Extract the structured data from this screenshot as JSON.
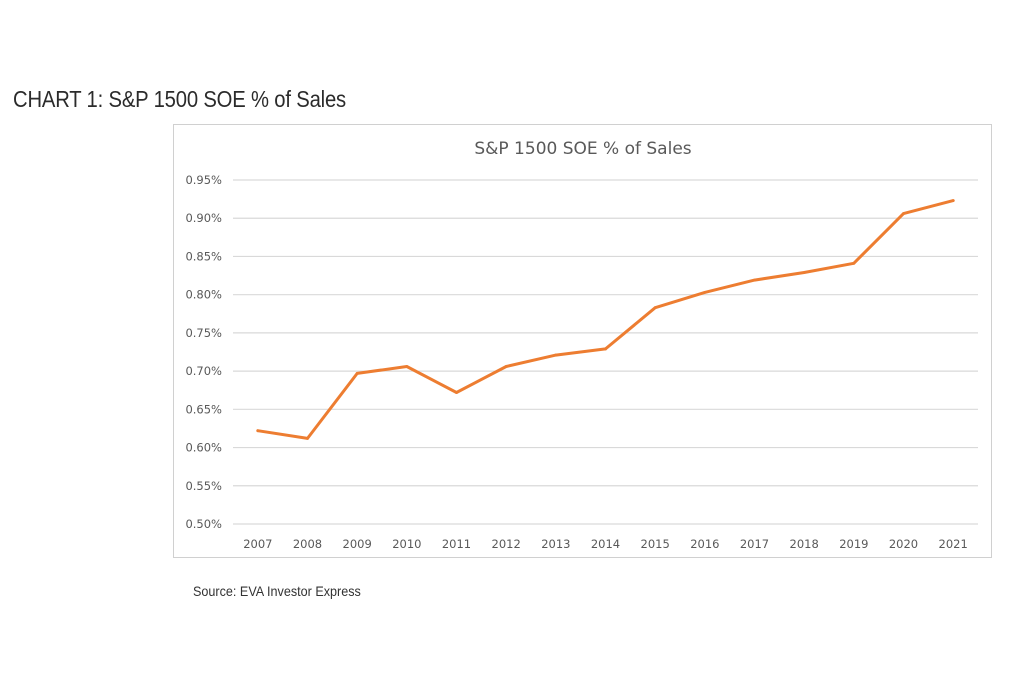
{
  "page": {
    "heading": "CHART 1: S&P 1500 SOE % of Sales",
    "source": "Source: EVA Investor Express"
  },
  "chart_data": {
    "type": "line",
    "title": "S&P 1500 SOE % of Sales",
    "xlabel": "",
    "ylabel": "",
    "categories": [
      "2007",
      "2008",
      "2009",
      "2010",
      "2011",
      "2012",
      "2013",
      "2014",
      "2015",
      "2016",
      "2017",
      "2018",
      "2019",
      "2020",
      "2021"
    ],
    "series": [
      {
        "color": "#ED7D31",
        "values": [
          0.622,
          0.612,
          0.697,
          0.706,
          0.672,
          0.706,
          0.721,
          0.729,
          0.783,
          0.803,
          0.819,
          0.829,
          0.841,
          0.906,
          0.923
        ]
      }
    ],
    "ylim": [
      0.5,
      0.95
    ],
    "yticks": [
      "0.50%",
      "0.55%",
      "0.60%",
      "0.65%",
      "0.70%",
      "0.75%",
      "0.80%",
      "0.85%",
      "0.90%",
      "0.95%"
    ],
    "grid": true,
    "legend": "none",
    "colors": {
      "line": "#ED7D31",
      "grid": "#d9d9d9",
      "text": "#595959"
    }
  }
}
